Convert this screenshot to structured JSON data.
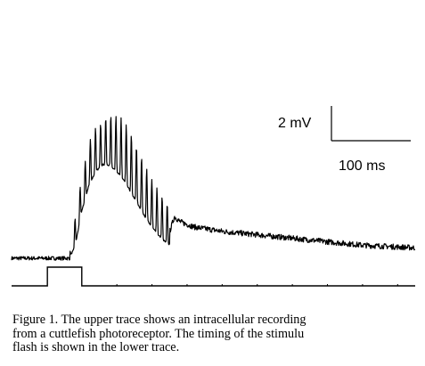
{
  "figure": {
    "scale_bar": {
      "voltage_label": "2 mV",
      "time_label": "100 ms",
      "voltage_mV": 2,
      "time_ms": 100
    },
    "chart_data": {
      "type": "line",
      "title": "",
      "xlabel": "",
      "ylabel": "",
      "x_unit": "ms",
      "y_unit": "mV",
      "grid": false,
      "legend": "none",
      "xlim": [
        0,
        575
      ],
      "series": [
        {
          "name": "",
          "trace": "upper",
          "baseline_mV": 0,
          "onset_ms": 83,
          "oscillation_period_ms": 7.3,
          "peak_envelope": {
            "x": [
              83,
              90,
              100,
              110,
              115,
              125,
              135,
              145,
              155,
              165,
              175,
              185,
              195,
              205,
              215,
              225
            ],
            "y": [
              0.3,
              2.2,
              4.7,
              6.5,
              7.3,
              7.7,
              8.1,
              8.25,
              8.1,
              7.6,
              6.7,
              5.8,
              4.9,
              4.2,
              3.5,
              2.9
            ]
          },
          "trough_envelope": {
            "x": [
              83,
              90,
              100,
              110,
              120,
              130,
              140,
              150,
              160,
              170,
              180,
              190,
              200,
              210,
              220,
              225
            ],
            "y": [
              0.1,
              0.6,
              2.7,
              4.2,
              5.0,
              5.4,
              5.35,
              5.0,
              4.5,
              3.8,
              3.1,
              2.4,
              1.8,
              1.3,
              0.9,
              0.8
            ],
            "note_hidden": false
          },
          "decay": {
            "x": [
              225,
              232,
              240,
              260,
              300,
              350,
              400,
              450,
              500,
              550,
              575
            ],
            "y": [
              1.5,
              2.4,
              2.1,
              1.8,
              1.55,
              1.35,
              1.15,
              0.95,
              0.75,
              0.65,
              0.6
            ]
          }
        },
        {
          "name": "",
          "trace": "lower",
          "stimulus_on_ms": [
            51,
            100
          ],
          "x": [
            0,
            51,
            51,
            100,
            100,
            575
          ],
          "y": [
            0,
            0,
            1,
            1,
            0,
            0
          ]
        }
      ]
    }
  },
  "caption": {
    "line1": "Figure 1. The upper trace shows an intracellular recording",
    "line2": "from a cuttlefish photoreceptor. The timing of the stimulu",
    "line3": "flash is shown in the lower trace."
  }
}
